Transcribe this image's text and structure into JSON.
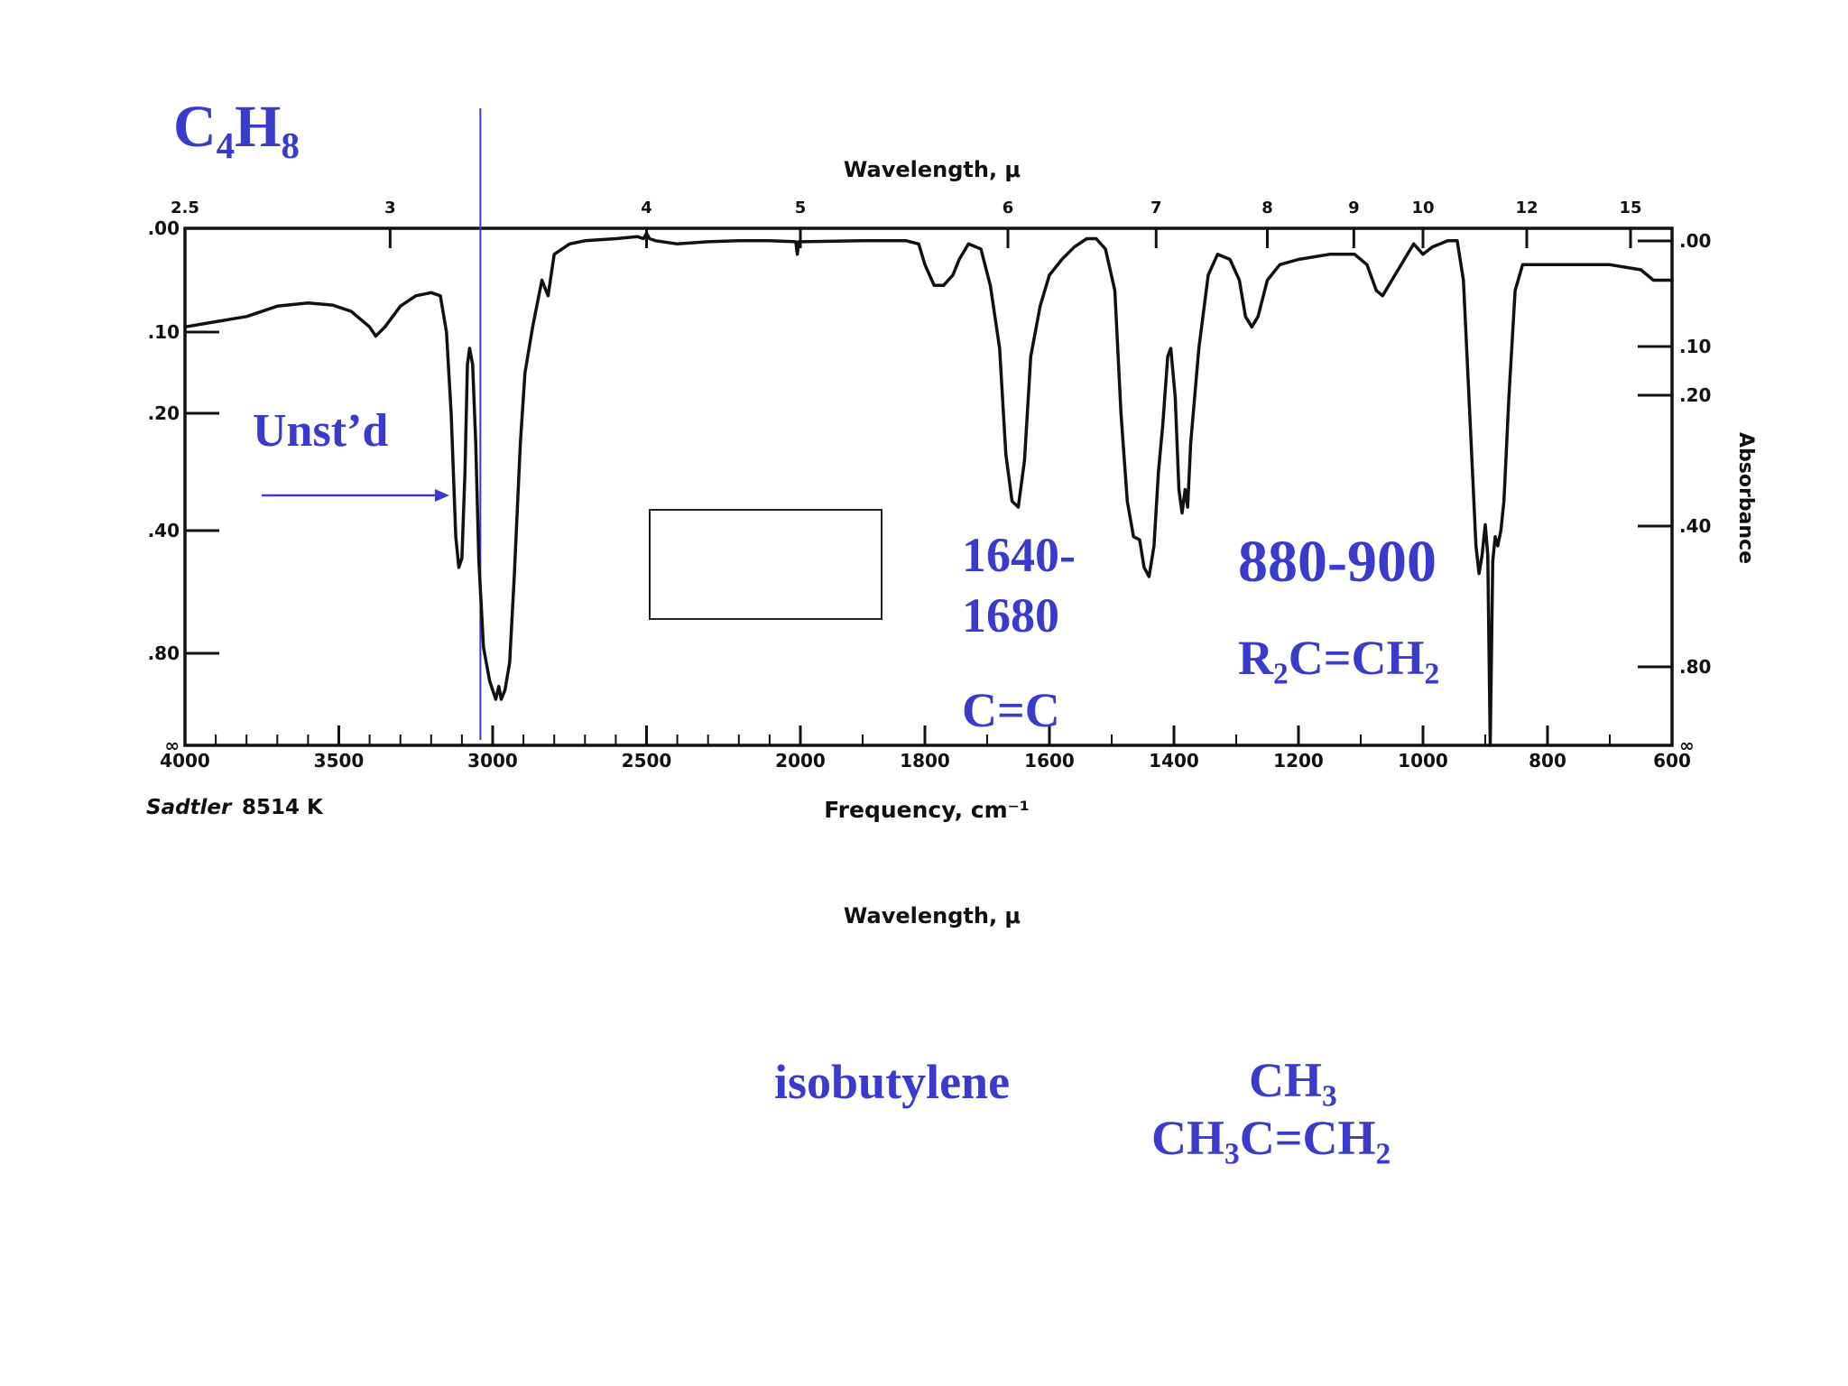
{
  "formula": {
    "base": "C",
    "sub1": "4",
    "mid": "H",
    "sub2": "8"
  },
  "unsat_label": "Unst’d",
  "peak1": {
    "line1": "1640-",
    "line2": "1680",
    "group": "C=C"
  },
  "peak2": {
    "range": "880-900",
    "group_p1": "R",
    "group_s1": "2",
    "group_p2": "C=CH",
    "group_s2": "2"
  },
  "compound_name": "isobutylene",
  "structure": {
    "top": "CH",
    "top_sub": "3",
    "bottom_p1": "CH",
    "bottom_s1": "3",
    "bottom_p2": "C=CH",
    "bottom_s2": "2"
  },
  "source": {
    "name": "Sadtler",
    "id": "8514 K"
  },
  "colors": {
    "annotation": "#3a3acc",
    "trace": "#111111"
  },
  "chart_data": {
    "type": "line",
    "title": "",
    "xlabel": "Frequency, cm⁻¹",
    "top_axis_label": "Wavelength, μ",
    "bottom_repeat_label": "Wavelength, μ",
    "ylabel": "Absorbance",
    "x_reversed": true,
    "xlim": [
      4000,
      600
    ],
    "x_ticks": [
      {
        "value": 4000,
        "label": "4000"
      },
      {
        "value": 3500,
        "label": "3500"
      },
      {
        "value": 3000,
        "label": "3000"
      },
      {
        "value": 2500,
        "label": "2500"
      },
      {
        "value": 2000,
        "label": "2000"
      },
      {
        "value": 1800,
        "label": "1800"
      },
      {
        "value": 1600,
        "label": "1600"
      },
      {
        "value": 1400,
        "label": "1400"
      },
      {
        "value": 1200,
        "label": "1200"
      },
      {
        "value": 1000,
        "label": "1000"
      },
      {
        "value": 800,
        "label": "800"
      },
      {
        "value": 600,
        "label": "600"
      }
    ],
    "top_ticks": [
      {
        "value": 2.5,
        "label": "2.5"
      },
      {
        "value": 3,
        "label": "3"
      },
      {
        "value": 4,
        "label": "4"
      },
      {
        "value": 5,
        "label": "5"
      },
      {
        "value": 6,
        "label": "6"
      },
      {
        "value": 7,
        "label": "7"
      },
      {
        "value": 8,
        "label": "8"
      },
      {
        "value": 9,
        "label": "9"
      },
      {
        "value": 10,
        "label": "10"
      },
      {
        "value": 12,
        "label": "12"
      },
      {
        "value": 15,
        "label": "15"
      }
    ],
    "left_ticks": [
      {
        "value": 0.0,
        "label": ".00"
      },
      {
        "value": 0.1,
        "label": ".10"
      },
      {
        "value": 0.2,
        "label": ".20"
      },
      {
        "value": 0.4,
        "label": ".40"
      },
      {
        "value": 0.8,
        "label": ".80"
      },
      {
        "value": "inf",
        "label": "∞"
      }
    ],
    "right_ticks": [
      {
        "value": 0.0,
        "label": ".00"
      },
      {
        "value": 0.1,
        "label": ".10"
      },
      {
        "value": 0.2,
        "label": ".20"
      },
      {
        "value": 0.4,
        "label": ".40"
      },
      {
        "value": 0.8,
        "label": ".80"
      },
      {
        "value": "inf",
        "label": "∞"
      }
    ],
    "reference_line_x": 3040,
    "series": [
      {
        "points": [
          [
            4000,
            0.095
          ],
          [
            3900,
            0.09
          ],
          [
            3800,
            0.085
          ],
          [
            3700,
            0.075
          ],
          [
            3600,
            0.072
          ],
          [
            3520,
            0.074
          ],
          [
            3460,
            0.08
          ],
          [
            3400,
            0.095
          ],
          [
            3380,
            0.105
          ],
          [
            3350,
            0.095
          ],
          [
            3300,
            0.075
          ],
          [
            3250,
            0.065
          ],
          [
            3200,
            0.062
          ],
          [
            3170,
            0.065
          ],
          [
            3150,
            0.1
          ],
          [
            3135,
            0.2
          ],
          [
            3120,
            0.42
          ],
          [
            3110,
            0.52
          ],
          [
            3100,
            0.49
          ],
          [
            3090,
            0.3
          ],
          [
            3082,
            0.14
          ],
          [
            3075,
            0.12
          ],
          [
            3065,
            0.14
          ],
          [
            3055,
            0.25
          ],
          [
            3045,
            0.5
          ],
          [
            3030,
            0.78
          ],
          [
            3010,
            0.95
          ],
          [
            2990,
            1.05
          ],
          [
            2980,
            0.98
          ],
          [
            2972,
            1.05
          ],
          [
            2960,
            1.0
          ],
          [
            2945,
            0.85
          ],
          [
            2930,
            0.55
          ],
          [
            2910,
            0.25
          ],
          [
            2895,
            0.15
          ],
          [
            2870,
            0.095
          ],
          [
            2850,
            0.065
          ],
          [
            2840,
            0.05
          ],
          [
            2820,
            0.065
          ],
          [
            2800,
            0.025
          ],
          [
            2750,
            0.015
          ],
          [
            2700,
            0.012
          ],
          [
            2600,
            0.01
          ],
          [
            2530,
            0.008
          ],
          [
            2510,
            0.01
          ],
          [
            2500,
            0.005
          ],
          [
            2490,
            0.01
          ],
          [
            2470,
            0.012
          ],
          [
            2400,
            0.015
          ],
          [
            2300,
            0.013
          ],
          [
            2200,
            0.012
          ],
          [
            2100,
            0.012
          ],
          [
            2015,
            0.013
          ],
          [
            2010,
            0.025
          ],
          [
            2005,
            0.013
          ],
          [
            1900,
            0.012
          ],
          [
            1830,
            0.012
          ],
          [
            1810,
            0.015
          ],
          [
            1800,
            0.035
          ],
          [
            1785,
            0.055
          ],
          [
            1770,
            0.055
          ],
          [
            1755,
            0.045
          ],
          [
            1745,
            0.03
          ],
          [
            1730,
            0.015
          ],
          [
            1710,
            0.02
          ],
          [
            1695,
            0.055
          ],
          [
            1680,
            0.12
          ],
          [
            1670,
            0.27
          ],
          [
            1660,
            0.35
          ],
          [
            1650,
            0.36
          ],
          [
            1640,
            0.28
          ],
          [
            1630,
            0.13
          ],
          [
            1615,
            0.075
          ],
          [
            1600,
            0.045
          ],
          [
            1580,
            0.03
          ],
          [
            1560,
            0.018
          ],
          [
            1540,
            0.01
          ],
          [
            1525,
            0.01
          ],
          [
            1510,
            0.02
          ],
          [
            1495,
            0.06
          ],
          [
            1485,
            0.2
          ],
          [
            1475,
            0.35
          ],
          [
            1465,
            0.42
          ],
          [
            1455,
            0.43
          ],
          [
            1448,
            0.52
          ],
          [
            1440,
            0.55
          ],
          [
            1432,
            0.45
          ],
          [
            1425,
            0.3
          ],
          [
            1418,
            0.22
          ],
          [
            1410,
            0.13
          ],
          [
            1405,
            0.12
          ],
          [
            1398,
            0.18
          ],
          [
            1392,
            0.33
          ],
          [
            1387,
            0.37
          ],
          [
            1382,
            0.33
          ],
          [
            1378,
            0.36
          ],
          [
            1373,
            0.25
          ],
          [
            1360,
            0.12
          ],
          [
            1345,
            0.045
          ],
          [
            1330,
            0.025
          ],
          [
            1310,
            0.03
          ],
          [
            1295,
            0.05
          ],
          [
            1285,
            0.085
          ],
          [
            1275,
            0.095
          ],
          [
            1265,
            0.085
          ],
          [
            1250,
            0.05
          ],
          [
            1230,
            0.035
          ],
          [
            1200,
            0.03
          ],
          [
            1150,
            0.025
          ],
          [
            1110,
            0.025
          ],
          [
            1090,
            0.035
          ],
          [
            1075,
            0.06
          ],
          [
            1065,
            0.065
          ],
          [
            1050,
            0.05
          ],
          [
            1030,
            0.03
          ],
          [
            1015,
            0.015
          ],
          [
            1000,
            0.025
          ],
          [
            985,
            0.018
          ],
          [
            960,
            0.012
          ],
          [
            945,
            0.012
          ],
          [
            935,
            0.05
          ],
          [
            925,
            0.2
          ],
          [
            915,
            0.45
          ],
          [
            910,
            0.54
          ],
          [
            905,
            0.48
          ],
          [
            900,
            0.39
          ],
          [
            896,
            0.48
          ],
          [
            892,
            1.3
          ],
          [
            888,
            0.5
          ],
          [
            884,
            0.42
          ],
          [
            880,
            0.45
          ],
          [
            875,
            0.4
          ],
          [
            870,
            0.35
          ],
          [
            862,
            0.18
          ],
          [
            852,
            0.06
          ],
          [
            840,
            0.035
          ],
          [
            800,
            0.035
          ],
          [
            700,
            0.035
          ],
          [
            650,
            0.04
          ],
          [
            630,
            0.05
          ],
          [
            600,
            0.05
          ]
        ]
      }
    ]
  }
}
